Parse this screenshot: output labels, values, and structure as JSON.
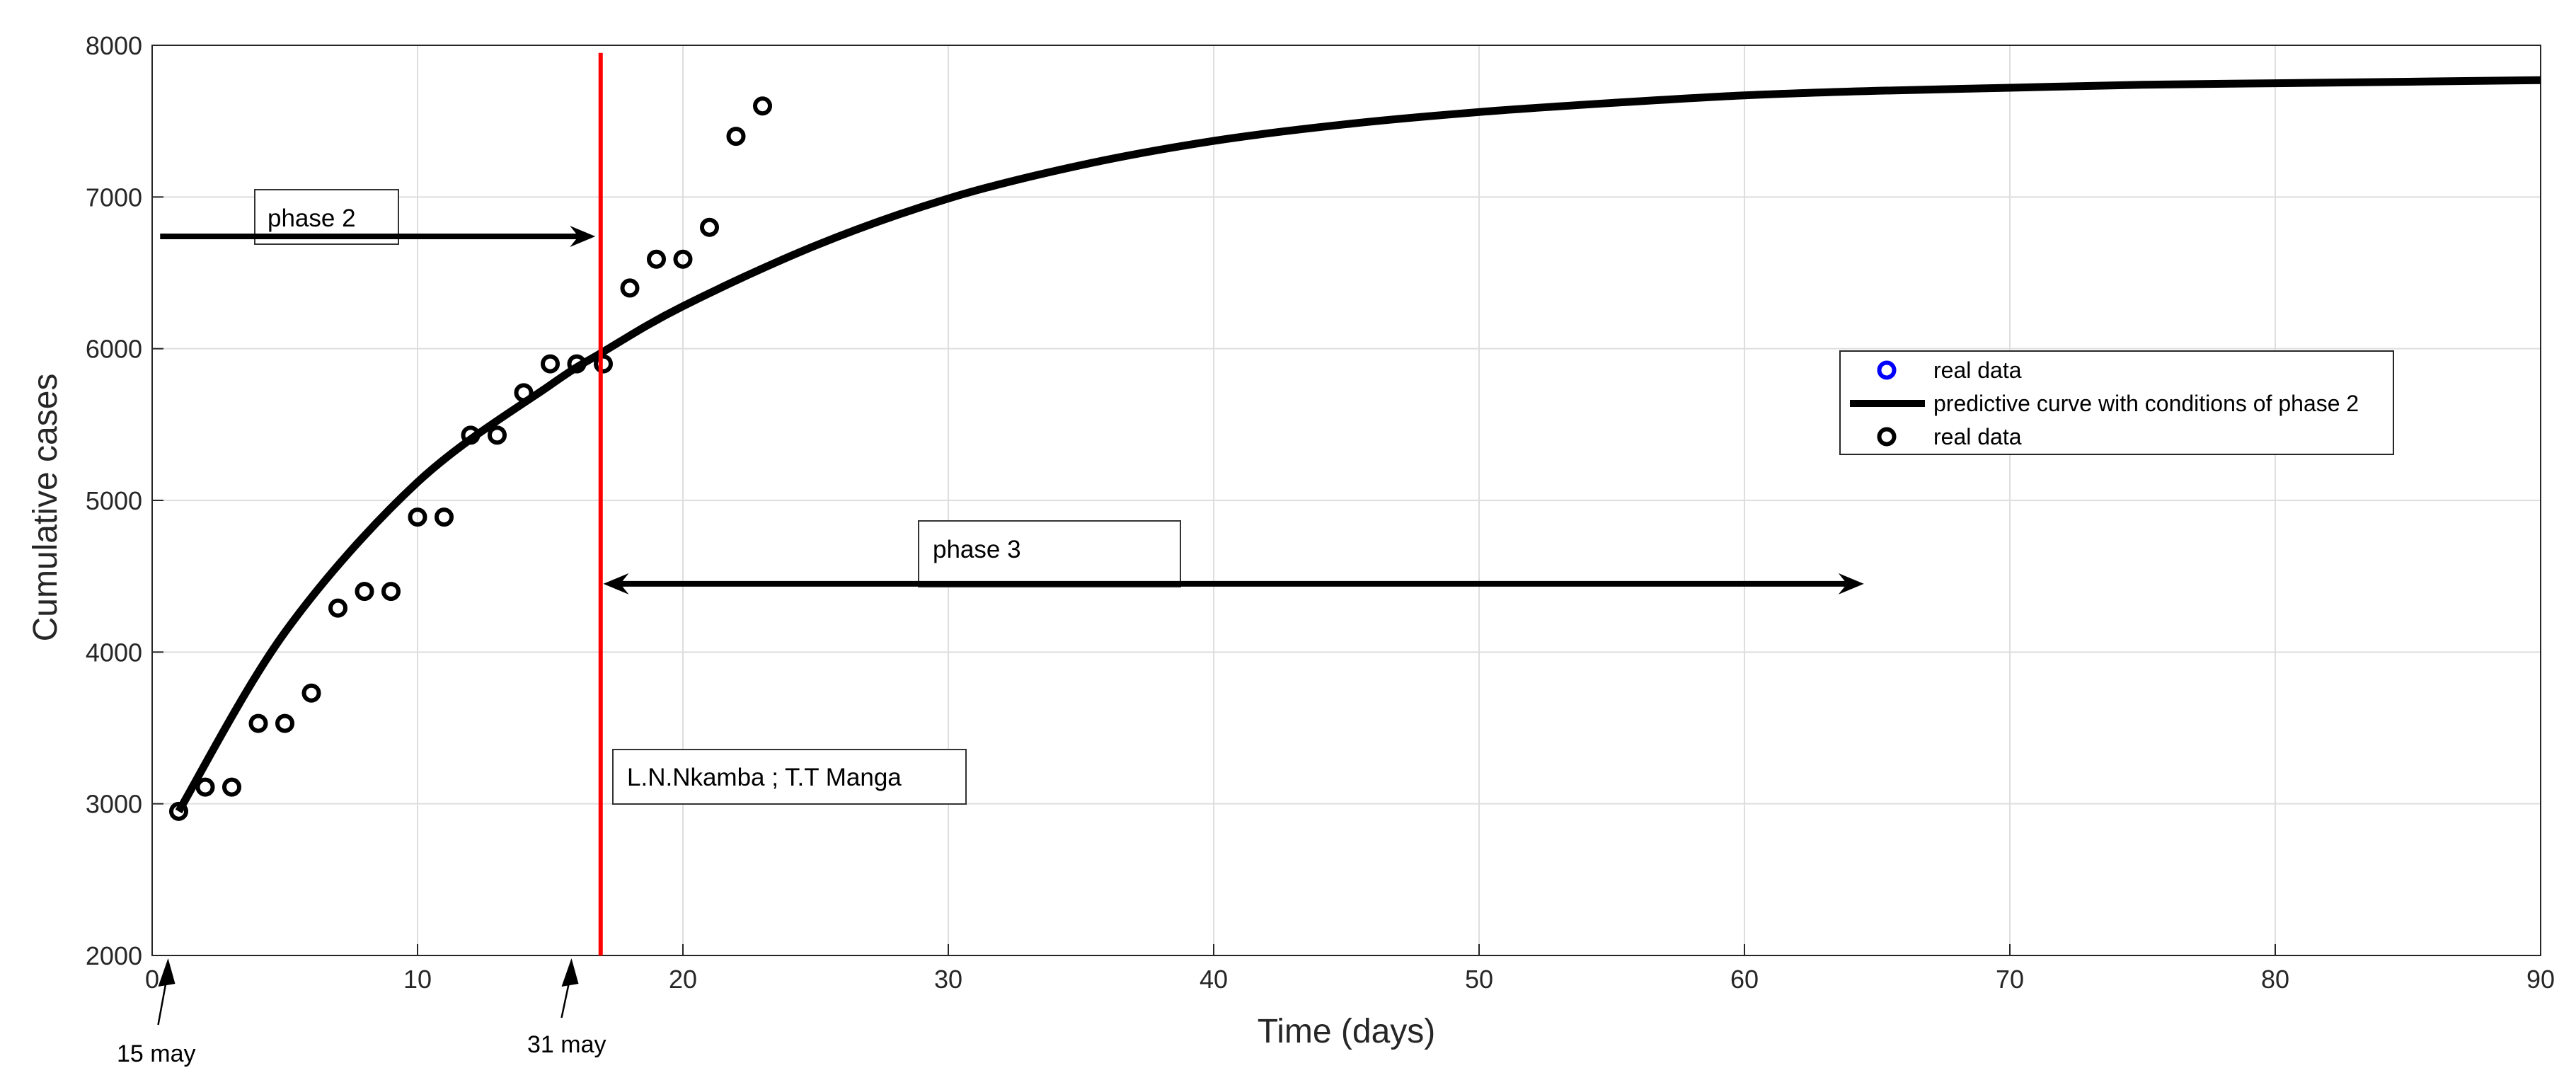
{
  "chart_data": {
    "type": "scatter",
    "xlabel": "Time (days)",
    "ylabel": "Cumulative  cases",
    "xlim": [
      0,
      90
    ],
    "ylim": [
      2000,
      8000
    ],
    "xticks": [
      0,
      10,
      20,
      30,
      40,
      50,
      60,
      70,
      80,
      90
    ],
    "yticks": [
      2000,
      3000,
      4000,
      5000,
      6000,
      7000,
      8000
    ],
    "grid": true,
    "legend_position": "right",
    "colors": {
      "real_data_legend": "#0000ff",
      "points": "#000000",
      "curve": "#000000",
      "vline": "#ff0000"
    },
    "legend": [
      {
        "label": "real data",
        "marker": "circle",
        "color": "#0000ff"
      },
      {
        "label": "predictive curve with conditions of phase 2",
        "marker": "line",
        "color": "#000000"
      },
      {
        "label": "real data",
        "marker": "circle",
        "color": "#000000"
      }
    ],
    "series": [
      {
        "name": "real data",
        "kind": "scatter",
        "x": [
          1,
          2,
          3,
          4,
          5,
          6,
          7,
          8,
          9,
          10,
          11,
          12,
          13,
          14,
          15,
          16,
          17,
          18,
          19,
          20,
          21,
          22,
          23
        ],
        "y": [
          2950,
          3110,
          3110,
          3530,
          3530,
          3730,
          4290,
          4400,
          4400,
          4890,
          4890,
          5430,
          5430,
          5710,
          5900,
          5900,
          5900,
          6400,
          6590,
          6590,
          6800,
          7400,
          7600
        ]
      },
      {
        "name": "predictive curve with conditions of phase 2",
        "kind": "line",
        "x": [
          1,
          5,
          10,
          15,
          17,
          20,
          25,
          30,
          35,
          40,
          45,
          50,
          55,
          60,
          65,
          70,
          75,
          80,
          85,
          90
        ],
        "y": [
          2950,
          4130,
          5120,
          5760,
          5980,
          6280,
          6680,
          6990,
          7210,
          7370,
          7480,
          7560,
          7620,
          7670,
          7700,
          7720,
          7740,
          7750,
          7760,
          7770
        ]
      }
    ],
    "vline": {
      "x": 16.9,
      "ymin": 2000,
      "ymax": 7950
    },
    "annotations": {
      "phase2": {
        "label": "phase 2",
        "arrow_from_x": 0.3,
        "arrow_to_x": 16.7,
        "y": 6740
      },
      "phase3": {
        "label": "phase 3",
        "arrow_from_x": 17.0,
        "arrow_to_x": 64.5,
        "y": 4450
      },
      "authors": {
        "label": "L.N.Nkamba ; T.T Manga"
      },
      "start_date": {
        "label": "15 may",
        "x": 0.6
      },
      "end_date": {
        "label": "31 may",
        "x": 15.8
      }
    }
  }
}
